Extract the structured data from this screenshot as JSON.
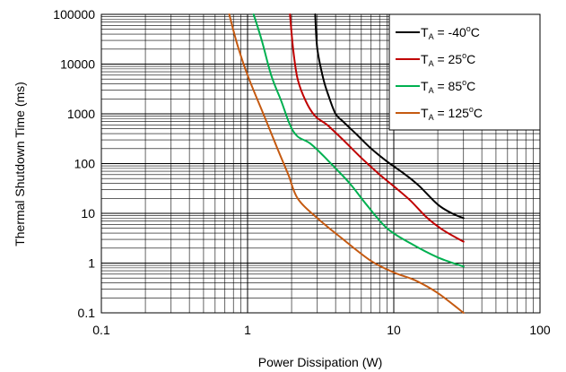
{
  "chart_data": {
    "type": "line",
    "title": "",
    "xlabel": "Power Dissipation (W)",
    "ylabel": "Thermal Shutdown Time (ms)",
    "xscale": "log",
    "yscale": "log",
    "xlim": [
      0.1,
      100
    ],
    "ylim": [
      0.1,
      100000
    ],
    "x_ticks": [
      {
        "value": 0.1,
        "label": "0.1"
      },
      {
        "value": 1,
        "label": "1"
      },
      {
        "value": 10,
        "label": "10"
      },
      {
        "value": 100,
        "label": "100"
      }
    ],
    "y_ticks": [
      {
        "value": 0.1,
        "label": "0.1"
      },
      {
        "value": 1,
        "label": "1"
      },
      {
        "value": 10,
        "label": "10"
      },
      {
        "value": 100,
        "label": "100"
      },
      {
        "value": 1000,
        "label": "1000"
      },
      {
        "value": 10000,
        "label": "10000"
      },
      {
        "value": 100000,
        "label": "100000"
      }
    ],
    "grid": true,
    "legend_position": "top-right",
    "series": [
      {
        "label_main": "T",
        "label_sub": "A",
        "label_value": " = -40",
        "label_sup": "o",
        "label_unit": "C",
        "color": "#000000",
        "points": [
          [
            2.9,
            100000
          ],
          [
            3.0,
            20000
          ],
          [
            3.3,
            5000
          ],
          [
            3.6,
            2200
          ],
          [
            4.0,
            1000
          ],
          [
            4.5,
            700
          ],
          [
            5.5,
            400
          ],
          [
            7,
            200
          ],
          [
            9,
            110
          ],
          [
            12,
            60
          ],
          [
            15,
            35
          ],
          [
            20,
            15
          ],
          [
            25,
            10
          ],
          [
            30,
            8
          ]
        ]
      },
      {
        "label_main": "T",
        "label_sub": "A",
        "label_value": " = 25",
        "label_sup": "o",
        "label_unit": "C",
        "color": "#c00000",
        "points": [
          [
            1.95,
            100000
          ],
          [
            2.05,
            20000
          ],
          [
            2.2,
            5000
          ],
          [
            2.5,
            1800
          ],
          [
            2.9,
            900
          ],
          [
            3.5,
            600
          ],
          [
            4.5,
            300
          ],
          [
            6,
            130
          ],
          [
            8,
            60
          ],
          [
            10,
            35
          ],
          [
            13,
            18
          ],
          [
            17,
            8
          ],
          [
            22,
            4.5
          ],
          [
            30,
            2.7
          ]
        ]
      },
      {
        "label_main": "T",
        "label_sub": "A",
        "label_value": " = 85",
        "label_sup": "o",
        "label_unit": "C",
        "color": "#00b050",
        "points": [
          [
            1.1,
            100000
          ],
          [
            1.25,
            30000
          ],
          [
            1.45,
            6000
          ],
          [
            1.7,
            1800
          ],
          [
            1.95,
            600
          ],
          [
            2.2,
            350
          ],
          [
            2.7,
            250
          ],
          [
            3.5,
            120
          ],
          [
            5,
            40
          ],
          [
            6.5,
            15
          ],
          [
            9,
            5
          ],
          [
            13,
            2.5
          ],
          [
            20,
            1.3
          ],
          [
            30,
            0.85
          ]
        ]
      },
      {
        "label_main": "T",
        "label_sub": "A",
        "label_value": " = 125",
        "label_sup": "o",
        "label_unit": "C",
        "color": "#c55a11",
        "points": [
          [
            0.75,
            100000
          ],
          [
            0.85,
            25000
          ],
          [
            1.0,
            6000
          ],
          [
            1.3,
            900
          ],
          [
            1.6,
            200
          ],
          [
            1.9,
            60
          ],
          [
            2.2,
            20
          ],
          [
            3,
            8
          ],
          [
            4.5,
            3
          ],
          [
            7,
            1.1
          ],
          [
            10,
            0.65
          ],
          [
            14,
            0.45
          ],
          [
            20,
            0.25
          ],
          [
            30,
            0.1
          ]
        ]
      }
    ]
  }
}
